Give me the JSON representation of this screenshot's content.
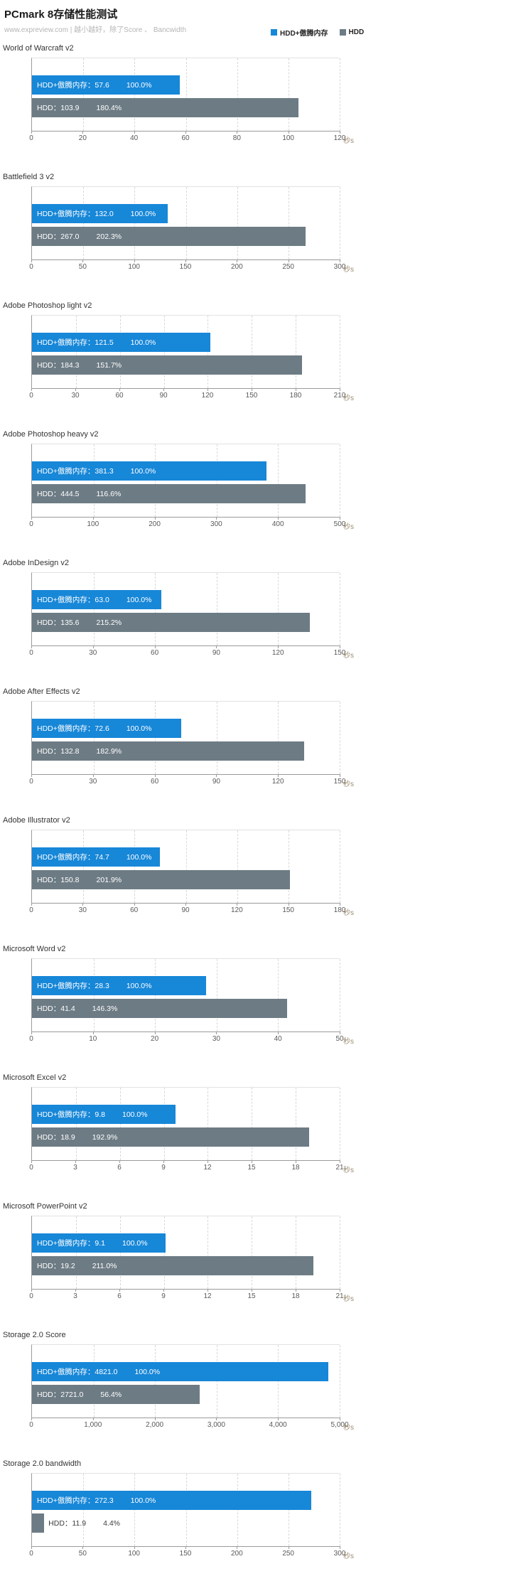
{
  "header": {
    "title": "PCmark 8存储性能测试",
    "subtitle": "www.expreview.com | 越小越好，除了Score 、 Bancwidth"
  },
  "legend": [
    {
      "label": "HDD+傲腾内存",
      "color": "#1787d8"
    },
    {
      "label": "HDD",
      "color": "#6d7b84"
    }
  ],
  "chart_data": [
    {
      "type": "bar",
      "orientation": "horizontal",
      "title": "World of Warcraft v2",
      "unit": "秒s",
      "xlim": [
        0,
        120
      ],
      "ticks": [
        0,
        20,
        40,
        60,
        80,
        100,
        120
      ],
      "series": [
        {
          "name": "HDD+傲腾内存",
          "value": 57.6,
          "percent": 100.0
        },
        {
          "name": "HDD",
          "value": 103.9,
          "percent": 180.4
        }
      ]
    },
    {
      "type": "bar",
      "orientation": "horizontal",
      "title": "Battlefield 3 v2",
      "unit": "秒s",
      "xlim": [
        0,
        300
      ],
      "ticks": [
        0,
        50,
        100,
        150,
        200,
        250,
        300
      ],
      "series": [
        {
          "name": "HDD+傲腾内存",
          "value": 132.0,
          "percent": 100.0
        },
        {
          "name": "HDD",
          "value": 267.0,
          "percent": 202.3
        }
      ]
    },
    {
      "type": "bar",
      "orientation": "horizontal",
      "title": "Adobe Photoshop light v2",
      "unit": "秒s",
      "xlim": [
        0,
        210
      ],
      "ticks": [
        0,
        30,
        60,
        90,
        120,
        150,
        180,
        210
      ],
      "series": [
        {
          "name": "HDD+傲腾内存",
          "value": 121.5,
          "percent": 100.0
        },
        {
          "name": "HDD",
          "value": 184.3,
          "percent": 151.7
        }
      ]
    },
    {
      "type": "bar",
      "orientation": "horizontal",
      "title": "Adobe Photoshop heavy v2",
      "unit": "秒s",
      "xlim": [
        0,
        500
      ],
      "ticks": [
        0,
        100,
        200,
        300,
        400,
        500
      ],
      "series": [
        {
          "name": "HDD+傲腾内存",
          "value": 381.3,
          "percent": 100.0
        },
        {
          "name": "HDD",
          "value": 444.5,
          "percent": 116.6
        }
      ]
    },
    {
      "type": "bar",
      "orientation": "horizontal",
      "title": "Adobe InDesign v2",
      "unit": "秒s",
      "xlim": [
        0,
        150
      ],
      "ticks": [
        0,
        30,
        60,
        90,
        120,
        150
      ],
      "series": [
        {
          "name": "HDD+傲腾内存",
          "value": 63.0,
          "percent": 100.0
        },
        {
          "name": "HDD",
          "value": 135.6,
          "percent": 215.2
        }
      ]
    },
    {
      "type": "bar",
      "orientation": "horizontal",
      "title": "Adobe After Effects v2",
      "unit": "秒s",
      "xlim": [
        0,
        150
      ],
      "ticks": [
        0,
        30,
        60,
        90,
        120,
        150
      ],
      "series": [
        {
          "name": "HDD+傲腾内存",
          "value": 72.6,
          "percent": 100.0
        },
        {
          "name": "HDD",
          "value": 132.8,
          "percent": 182.9
        }
      ]
    },
    {
      "type": "bar",
      "orientation": "horizontal",
      "title": "Adobe Illustrator v2",
      "unit": "秒s",
      "xlim": [
        0,
        180
      ],
      "ticks": [
        0,
        30,
        60,
        90,
        120,
        150,
        180
      ],
      "series": [
        {
          "name": "HDD+傲腾内存",
          "value": 74.7,
          "percent": 100.0
        },
        {
          "name": "HDD",
          "value": 150.8,
          "percent": 201.9
        }
      ]
    },
    {
      "type": "bar",
      "orientation": "horizontal",
      "title": "Microsoft Word v2",
      "unit": "秒s",
      "xlim": [
        0,
        50
      ],
      "ticks": [
        0,
        10,
        20,
        30,
        40,
        50
      ],
      "series": [
        {
          "name": "HDD+傲腾内存",
          "value": 28.3,
          "percent": 100.0
        },
        {
          "name": "HDD",
          "value": 41.4,
          "percent": 146.3
        }
      ]
    },
    {
      "type": "bar",
      "orientation": "horizontal",
      "title": "Microsoft Excel v2",
      "unit": "秒s",
      "xlim": [
        0,
        21
      ],
      "ticks": [
        0,
        3,
        6,
        9,
        12,
        15,
        18,
        21
      ],
      "series": [
        {
          "name": "HDD+傲腾内存",
          "value": 9.8,
          "percent": 100.0
        },
        {
          "name": "HDD",
          "value": 18.9,
          "percent": 192.9
        }
      ]
    },
    {
      "type": "bar",
      "orientation": "horizontal",
      "title": "Microsoft PowerPoint v2",
      "unit": "秒s",
      "xlim": [
        0,
        21
      ],
      "ticks": [
        0,
        3,
        6,
        9,
        12,
        15,
        18,
        21
      ],
      "series": [
        {
          "name": "HDD+傲腾内存",
          "value": 9.1,
          "percent": 100.0
        },
        {
          "name": "HDD",
          "value": 19.2,
          "percent": 211.0
        }
      ]
    },
    {
      "type": "bar",
      "orientation": "horizontal",
      "title": "Storage 2.0 Score",
      "unit": "秒s",
      "xlim": [
        0,
        5000
      ],
      "ticks": [
        0,
        1000,
        2000,
        3000,
        4000,
        5000
      ],
      "series": [
        {
          "name": "HDD+傲腾内存",
          "value": 4821.0,
          "percent": 100.0
        },
        {
          "name": "HDD",
          "value": 2721.0,
          "percent": 56.4
        }
      ]
    },
    {
      "type": "bar",
      "orientation": "horizontal",
      "title": "Storage 2.0 bandwidth",
      "unit": "秒s",
      "xlim": [
        0,
        300
      ],
      "ticks": [
        0,
        50,
        100,
        150,
        200,
        250,
        300
      ],
      "series": [
        {
          "name": "HDD+傲腾内存",
          "value": 272.3,
          "percent": 100.0
        },
        {
          "name": "HDD",
          "value": 11.9,
          "percent": 4.4
        }
      ]
    }
  ]
}
